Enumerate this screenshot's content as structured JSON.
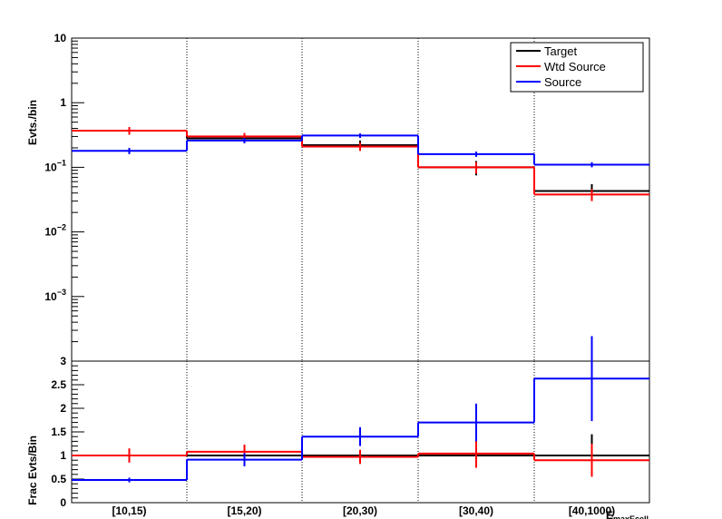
{
  "chart_data": [
    {
      "type": "line",
      "subtype": "step-histogram",
      "ylabel": "Evts./bin",
      "yscale": "log",
      "ylim": [
        0.0001,
        10
      ],
      "categories": [
        "[10,15)",
        "[15,20)",
        "[20,30)",
        "[30,40)",
        "[40,1000)"
      ],
      "ytick_labels": [
        {
          "v": 10,
          "text": "10"
        },
        {
          "v": 1,
          "text": "1"
        },
        {
          "v": 0.1,
          "text": "10",
          "sup": "−1"
        },
        {
          "v": 0.01,
          "text": "10",
          "sup": "−2"
        },
        {
          "v": 0.001,
          "text": "10",
          "sup": "−3"
        }
      ],
      "grid": "vertical-dotted-at-bin-edges",
      "legend_position": "top-right",
      "series": [
        {
          "name": "Target",
          "color": "#000000",
          "values": [
            0.37,
            0.28,
            0.22,
            0.1,
            0.043
          ],
          "errors": [
            0.05,
            0.04,
            0.04,
            0.025,
            0.012
          ]
        },
        {
          "name": "Wtd Source",
          "color": "#ff0000",
          "values": [
            0.37,
            0.3,
            0.21,
            0.1,
            0.038
          ],
          "errors": [
            0.05,
            0.04,
            0.03,
            0.02,
            0.008
          ]
        },
        {
          "name": "Source",
          "color": "#0000ff",
          "values": [
            0.18,
            0.26,
            0.31,
            0.16,
            0.11
          ],
          "errors": [
            0.02,
            0.025,
            0.025,
            0.015,
            0.01
          ]
        }
      ]
    },
    {
      "type": "line",
      "subtype": "step-histogram",
      "ylabel": "Frac Evts/Bin",
      "xlabel": "E",
      "xlabel_sub": "maxEcell",
      "ylim": [
        0,
        3
      ],
      "categories": [
        "[10,15)",
        "[15,20)",
        "[20,30)",
        "[30,40)",
        "[40,1000)"
      ],
      "ytick_labels": [
        "0",
        "0.5",
        "1",
        "1.5",
        "2",
        "2.5",
        "3"
      ],
      "grid": "vertical-dotted-at-bin-edges",
      "series": [
        {
          "name": "Target",
          "color": "#000000",
          "values": [
            1.0,
            1.0,
            1.0,
            1.0,
            1.0
          ],
          "errors": [
            0,
            0,
            0,
            0,
            0.45
          ]
        },
        {
          "name": "Wtd Source",
          "color": "#ff0000",
          "values": [
            1.0,
            1.08,
            0.97,
            1.04,
            0.9
          ],
          "errors": [
            0.15,
            0.15,
            0.15,
            0.3,
            0.35
          ]
        },
        {
          "name": "Source",
          "color": "#0000ff",
          "values": [
            0.48,
            0.91,
            1.4,
            1.7,
            2.63
          ],
          "errors": [
            0.05,
            0.14,
            0.2,
            0.4,
            0.9
          ]
        }
      ]
    }
  ]
}
